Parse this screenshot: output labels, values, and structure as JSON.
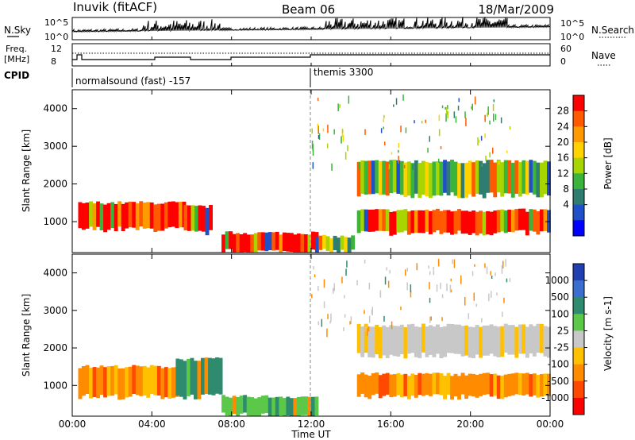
{
  "header": {
    "station": "Inuvik (fitACF)",
    "beam": "Beam 06",
    "date": "18/Mar/2009"
  },
  "noise_panel": {
    "left_label": "N.Sky",
    "left_ticks": [
      "10^5",
      "10^0"
    ],
    "right_ticks": [
      "10^5",
      "10^0"
    ],
    "right_label": "N.Search"
  },
  "freq_panel": {
    "left_label_line1": "Freq.",
    "left_label_line2": "[MHz]",
    "left_ticks": [
      "12",
      "8"
    ],
    "right_ticks": [
      "60",
      "0"
    ],
    "right_label": "Nave"
  },
  "cpid": {
    "label": "CPID",
    "modes": [
      {
        "text": "normalsound (fast) -157",
        "start_hour": 0
      },
      {
        "text": "themis 3300",
        "start_hour": 12
      }
    ]
  },
  "axes": {
    "ylabel": "Slant Range [km]",
    "yticks": [
      "4000",
      "3000",
      "2000",
      "1000"
    ],
    "xlabel": "Time UT",
    "xticks": [
      "00:00",
      "04:00",
      "08:00",
      "12:00",
      "16:00",
      "20:00",
      "00:00"
    ]
  },
  "power_colorbar": {
    "label": "Power [dB]",
    "ticks": [
      "28",
      "24",
      "20",
      "16",
      "12",
      "8",
      "4"
    ],
    "colors": [
      "#ff0000",
      "#ff5a00",
      "#ff9a00",
      "#ffd200",
      "#a8d400",
      "#3cb43c",
      "#2e7d6e",
      "#2050c8",
      "#0000ff"
    ]
  },
  "velocity_colorbar": {
    "label": "Velocity [m s-1]",
    "ticks": [
      "1000",
      "500",
      "100",
      "25",
      "-25",
      "-100",
      "-500",
      "-1000"
    ],
    "colors": [
      "#2040b0",
      "#3a6fd0",
      "#2e8b6e",
      "#5cc84a",
      "#c8c8c8",
      "#ffc000",
      "#ff8c00",
      "#ff4800",
      "#ff0000"
    ]
  },
  "chart_data": {
    "type": "heatmap",
    "x_range_hours": [
      0,
      24
    ],
    "y_range_km": [
      180,
      4500
    ],
    "grid": false,
    "power_bands": [
      {
        "t0": 0.3,
        "t1": 5.6,
        "r_low": 800,
        "r_high": 1500,
        "level": "high"
      },
      {
        "t0": 5.6,
        "t1": 7.0,
        "r_low": 700,
        "r_high": 1400,
        "level": "high"
      },
      {
        "t0": 7.5,
        "t1": 12.2,
        "r_low": 200,
        "r_high": 700,
        "level": "high"
      },
      {
        "t0": 12.2,
        "t1": 14.0,
        "r_low": 200,
        "r_high": 600,
        "level": "medium"
      },
      {
        "t0": 14.3,
        "t1": 24.0,
        "r_low": 700,
        "r_high": 1300,
        "level": "high"
      },
      {
        "t0": 14.3,
        "t1": 24.0,
        "r_low": 1700,
        "r_high": 2600,
        "level": "medium"
      }
    ],
    "velocity_bands": [
      {
        "t0": 0.3,
        "t1": 5.2,
        "r_low": 700,
        "r_high": 1500,
        "level": "-100"
      },
      {
        "t0": 5.2,
        "t1": 7.5,
        "r_low": 700,
        "r_high": 1700,
        "level": "500"
      },
      {
        "t0": 7.5,
        "t1": 12.2,
        "r_low": 200,
        "r_high": 700,
        "level": "25"
      },
      {
        "t0": 14.3,
        "t1": 24.0,
        "r_low": 700,
        "r_high": 1300,
        "level": "-100"
      },
      {
        "t0": 14.3,
        "t1": 24.0,
        "r_low": 1800,
        "r_high": 2600,
        "level": "-25"
      }
    ]
  }
}
